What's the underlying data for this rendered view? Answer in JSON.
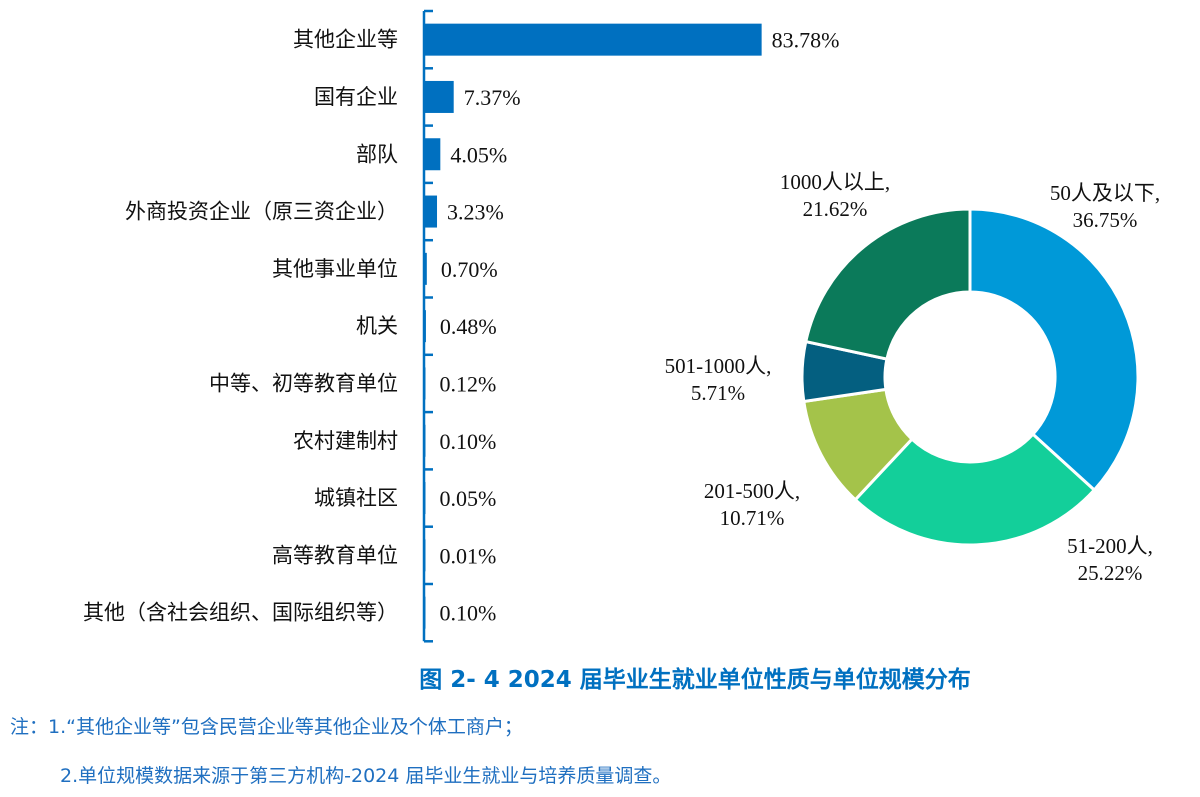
{
  "chart_data": [
    {
      "type": "bar",
      "orientation": "horizontal",
      "categories": [
        "其他企业等",
        "国有企业",
        "部队",
        "外商投资企业（原三资企业）",
        "其他事业单位",
        "机关",
        "中等、初等教育单位",
        "农村建制村",
        "城镇社区",
        "高等教育单位",
        "其他（含社会组织、国际组织等）"
      ],
      "values": [
        83.78,
        7.37,
        4.05,
        3.23,
        0.7,
        0.48,
        0.12,
        0.1,
        0.05,
        0.01,
        0.1
      ],
      "labels": [
        "83.78%",
        "7.37%",
        "4.05%",
        "3.23%",
        "0.70%",
        "0.48%",
        "0.12%",
        "0.10%",
        "0.05%",
        "0.01%",
        "0.10%"
      ],
      "color": "#0070c0",
      "grid": false
    },
    {
      "type": "pie",
      "donut": true,
      "slices": [
        {
          "name": "50人及以下",
          "value": 36.75,
          "label": "36.75%",
          "color": "#0099d8"
        },
        {
          "name": "51-200人",
          "value": 25.22,
          "label": "25.22%",
          "color": "#13cf9a"
        },
        {
          "name": "201-500人",
          "value": 10.71,
          "label": "10.71%",
          "color": "#a4c34a"
        },
        {
          "name": "501-1000人",
          "value": 5.71,
          "label": "5.71%",
          "color": "#045f80"
        },
        {
          "name": "1000人以上",
          "value": 21.62,
          "label": "21.62%",
          "color": "#0b7a5a"
        }
      ]
    }
  ],
  "title": "图 2- 4  2024 届毕业生就业单位性质与单位规模分布",
  "notes": [
    "注：1.“其他企业等”包含民营企业等其他企业及个体工商户；",
    "2.单位规模数据来源于第三方机构-2024 届毕业生就业与培养质量调查。"
  ]
}
